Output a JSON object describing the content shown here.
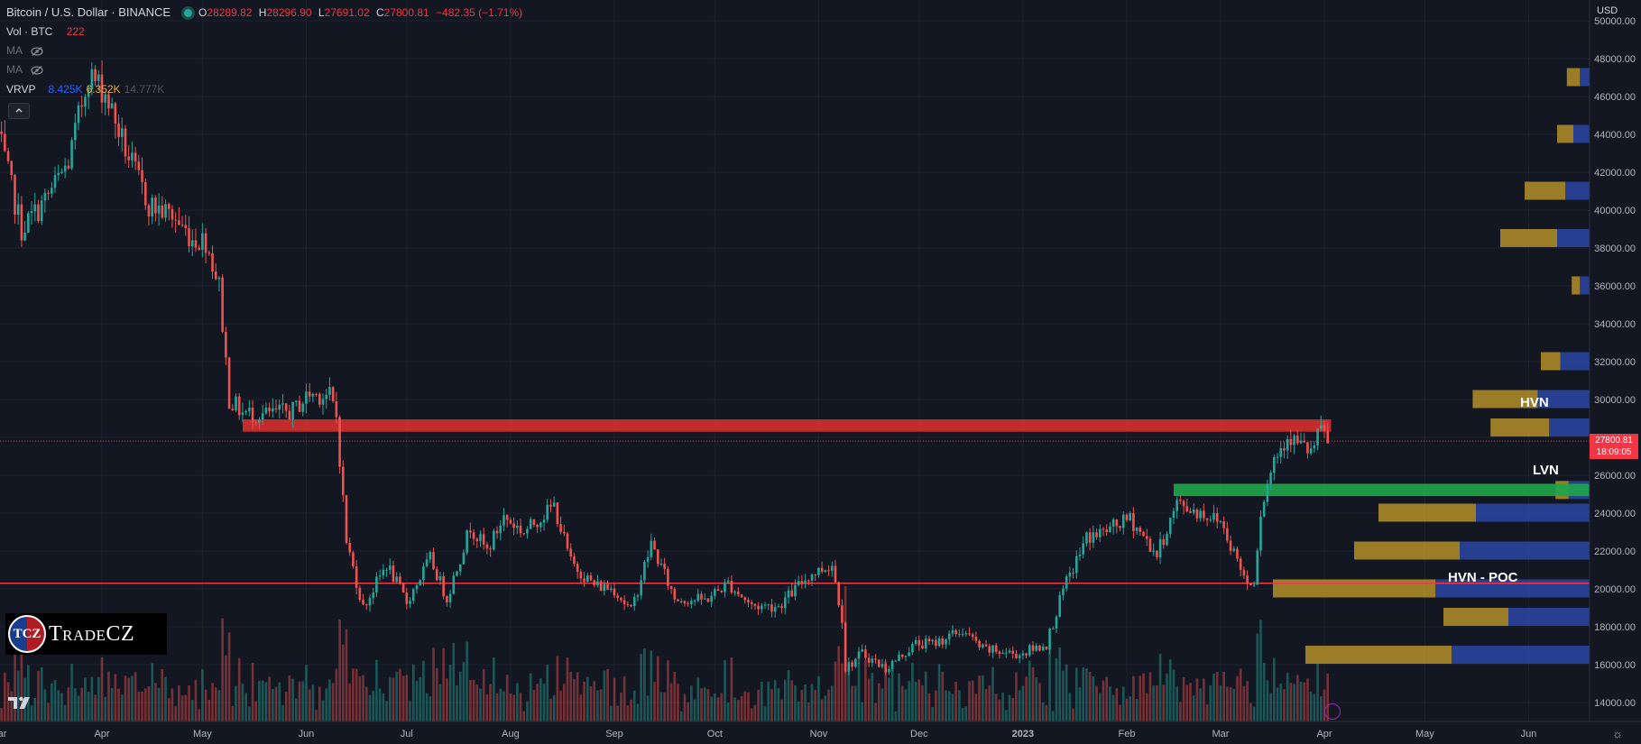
{
  "header": {
    "symbol": "Bitcoin / U.S. Dollar · BINANCE",
    "o_label": "O",
    "o_value": "28289.82",
    "h_label": "H",
    "h_value": "28296.90",
    "l_label": "L",
    "l_value": "27691.02",
    "c_label": "C",
    "c_value": "27800.81",
    "change": "−482.35 (−1.71%)"
  },
  "indicators": {
    "vol_label": "Vol · BTC",
    "vol_value": "222",
    "ma1_label": "MA",
    "ma2_label": "MA",
    "vrvp_label": "VRVP",
    "vrvp_up": "8.425K",
    "vrvp_down": "6.352K",
    "vrvp_total": "14.777K"
  },
  "branding": {
    "logo_mark": "TCZ",
    "logo_text": "TradeCZ",
    "icon": "tradingview-icon"
  },
  "price_scale": {
    "currency": "USD",
    "last_price": "27800.81",
    "countdown": "18:09:05"
  },
  "annotations": {
    "hvn": "HVN",
    "lvn": "LVN",
    "poc": "HVN - POC"
  },
  "colors": {
    "up": "#26a69a",
    "down": "#ef5350",
    "background": "#131722",
    "grid": "#1e222d",
    "resistance_band": "#d32f2f",
    "support_band": "#1ea54a",
    "poc_line": "#f23645",
    "vp_up": "#2f4eb5",
    "vp_down": "#c9a02a"
  },
  "chart_data": {
    "type": "candlestick",
    "symbol": "BTCUSD",
    "interval": "1D",
    "y_range": [
      13000,
      51000
    ],
    "y_ticks": [
      14000,
      16000,
      18000,
      20000,
      22000,
      24000,
      26000,
      28000,
      30000,
      32000,
      34000,
      36000,
      38000,
      40000,
      42000,
      44000,
      46000,
      48000,
      50000
    ],
    "y_tick_labels": [
      "14000.00",
      "16000.00",
      "18000.00",
      "20000.00",
      "22000.00",
      "24000.00",
      "26000.00",
      "28000.00",
      "30000.00",
      "32000.00",
      "34000.00",
      "36000.00",
      "38000.00",
      "40000.00",
      "42000.00",
      "44000.00",
      "46000.00",
      "48000.00",
      "50000.00"
    ],
    "x_labels": [
      "Mar",
      "Apr",
      "May",
      "Jun",
      "Jul",
      "Aug",
      "Sep",
      "Oct",
      "Nov",
      "Dec",
      "2023",
      "Feb",
      "Mar",
      "Apr",
      "May",
      "Jun"
    ],
    "close_path": [
      [
        "2022-03-01",
        44000
      ],
      [
        "2022-03-08",
        39000
      ],
      [
        "2022-03-15",
        40500
      ],
      [
        "2022-03-22",
        42500
      ],
      [
        "2022-03-28",
        47200
      ],
      [
        "2022-04-02",
        46200
      ],
      [
        "2022-04-08",
        43200
      ],
      [
        "2022-04-15",
        40300
      ],
      [
        "2022-04-22",
        39700
      ],
      [
        "2022-04-28",
        38500
      ],
      [
        "2022-05-02",
        38400
      ],
      [
        "2022-05-06",
        36000
      ],
      [
        "2022-05-09",
        30000
      ],
      [
        "2022-05-13",
        29300
      ],
      [
        "2022-05-20",
        29200
      ],
      [
        "2022-05-28",
        29400
      ],
      [
        "2022-06-02",
        30300
      ],
      [
        "2022-06-08",
        30200
      ],
      [
        "2022-06-10",
        29100
      ],
      [
        "2022-06-13",
        22500
      ],
      [
        "2022-06-18",
        19000
      ],
      [
        "2022-06-25",
        21300
      ],
      [
        "2022-07-01",
        19300
      ],
      [
        "2022-07-08",
        21600
      ],
      [
        "2022-07-13",
        19500
      ],
      [
        "2022-07-20",
        23300
      ],
      [
        "2022-07-25",
        22000
      ],
      [
        "2022-07-30",
        23800
      ],
      [
        "2022-08-05",
        23000
      ],
      [
        "2022-08-14",
        24400
      ],
      [
        "2022-08-19",
        21400
      ],
      [
        "2022-08-26",
        20200
      ],
      [
        "2022-09-01",
        20000
      ],
      [
        "2022-09-06",
        18800
      ],
      [
        "2022-09-12",
        22400
      ],
      [
        "2022-09-19",
        19500
      ],
      [
        "2022-09-28",
        19400
      ],
      [
        "2022-10-05",
        20300
      ],
      [
        "2022-10-12",
        19100
      ],
      [
        "2022-10-20",
        19100
      ],
      [
        "2022-10-29",
        20700
      ],
      [
        "2022-11-05",
        21300
      ],
      [
        "2022-11-08",
        18500
      ],
      [
        "2022-11-09",
        15800
      ],
      [
        "2022-11-14",
        16600
      ],
      [
        "2022-11-21",
        15800
      ],
      [
        "2022-11-30",
        17100
      ],
      [
        "2022-12-05",
        17100
      ],
      [
        "2022-12-14",
        17800
      ],
      [
        "2022-12-20",
        16800
      ],
      [
        "2022-12-31",
        16550
      ],
      [
        "2023-01-08",
        17100
      ],
      [
        "2023-01-13",
        19900
      ],
      [
        "2023-01-20",
        22700
      ],
      [
        "2023-01-25",
        23000
      ],
      [
        "2023-02-02",
        23700
      ],
      [
        "2023-02-10",
        21800
      ],
      [
        "2023-02-16",
        24500
      ],
      [
        "2023-02-22",
        24100
      ],
      [
        "2023-03-01",
        23600
      ],
      [
        "2023-03-09",
        20300
      ],
      [
        "2023-03-11",
        20500
      ],
      [
        "2023-03-13",
        24100
      ],
      [
        "2023-03-17",
        26900
      ],
      [
        "2023-03-21",
        28100
      ],
      [
        "2023-03-28",
        27200
      ],
      [
        "2023-03-31",
        28400
      ],
      [
        "2023-04-02",
        27800
      ]
    ],
    "levels": [
      {
        "label": "HVN",
        "kind": "resistance",
        "price_from": 28300,
        "price_to": 28950,
        "from": "2022-05-13",
        "to": "2023-04-03"
      },
      {
        "label": "LVN",
        "kind": "support",
        "price_from": 24900,
        "price_to": 25550,
        "from": "2023-02-15",
        "to": "2023-06-30"
      },
      {
        "label": "HVN - POC",
        "kind": "line",
        "price": 20300
      }
    ],
    "volume_profile": [
      {
        "price": 47000,
        "up": 0.6,
        "down": 0.8
      },
      {
        "price": 44000,
        "up": 1.0,
        "down": 1.0
      },
      {
        "price": 41000,
        "up": 1.5,
        "down": 2.5
      },
      {
        "price": 38500,
        "up": 2.0,
        "down": 3.5
      },
      {
        "price": 36000,
        "up": 0.6,
        "down": 0.5
      },
      {
        "price": 32000,
        "up": 1.8,
        "down": 1.2
      },
      {
        "price": 30000,
        "up": 3.2,
        "down": 4.0
      },
      {
        "price": 28500,
        "up": 2.5,
        "down": 3.6
      },
      {
        "price": 25200,
        "up": 1.3,
        "down": 0.8
      },
      {
        "price": 24000,
        "up": 7.0,
        "down": 6.0
      },
      {
        "price": 22000,
        "up": 8.0,
        "down": 6.5
      },
      {
        "price": 20000,
        "up": 9.5,
        "down": 10.0
      },
      {
        "price": 18500,
        "up": 5.0,
        "down": 4.0
      },
      {
        "price": 16500,
        "up": 8.5,
        "down": 9.0
      }
    ]
  }
}
